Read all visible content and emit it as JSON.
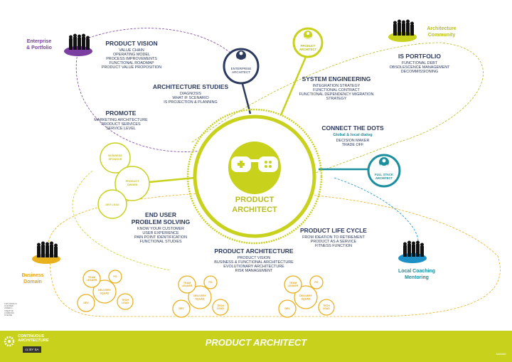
{
  "center": {
    "title_line1": "PRODUCT",
    "title_line2": "ARCHITECT"
  },
  "footer": {
    "title": "PRODUCT ARCHITECT",
    "brand_line1": "CONTINUOUS",
    "brand_line2": "ARCHITECTURE",
    "license": "cc BY SA",
    "logo": "NAWAK"
  },
  "roles": {
    "enterprise_architect": "ENTERPRISE\nARCHITECT",
    "product_architect": "PRODUCT\nARCHITECT",
    "full_stack_architect": "FULL STACK\nARCHITECT",
    "product_owner": "PRODUCT\nOWNER",
    "business_sponsor": "BUSINESS\nSPONSOR",
    "dev_lead": "DEV LEAD"
  },
  "communities": {
    "enterprise_portfolio": "Enterprise\n& Portfolio",
    "architecture_community": "Architecture\nCommunity",
    "business_domain": "Business\nDomain",
    "local_coaching": "Local Coaching\nMentoring"
  },
  "blocks": {
    "product_vision": {
      "title": "PRODUCT VISION",
      "items": [
        "VALUE CHAIN",
        "OPERATING MODEL",
        "PROCESS IMPROVEMENTS",
        "FUNCTIONAL ROADMAP",
        "PRODUCT VALUE PROPOSITION"
      ]
    },
    "architecture_studies": {
      "title": "ARCHITECTURE STUDIES",
      "items": [
        "DIAGNOSIS",
        "WHAT IF SCENARIO",
        "IS PROJECTION & PLANNING"
      ]
    },
    "promote": {
      "title": "PROMOTE",
      "items": [
        "MARKETING ARCHITECTURE",
        "PRODUCT  SERVICES",
        "SERVICE LEVEL"
      ]
    },
    "system_engineering": {
      "title": "SYSTEM ENGINEERING",
      "items": [
        "INTEGRATION STRATEGY",
        "FUNCTIONAL CONTRACT",
        "FUNCTIONAL DEPENDENCY MIGRATION",
        "STRATEGY"
      ]
    },
    "is_portfolio": {
      "title": "IS PORTFOLIO",
      "items": [
        "FUNCTIONAL DEBT",
        "OBSOLESCENCE MANAGEMENT",
        "DECOMMISSIONING"
      ]
    },
    "connect_the_dots": {
      "title": "CONNECT THE DOTS",
      "highlight": "Global & local dialog",
      "items": [
        "DECISION MAKER",
        "TRADE OFF"
      ]
    },
    "end_user": {
      "title_line1": "END USER",
      "title_line2": "PROBLEM SOLVING",
      "items": [
        "KNOW YOUR CUSTOMER",
        "USER EXPERIENCE",
        "PAIN POINT IDENTIFICATION",
        "FUNCTIONAL STUDIES"
      ]
    },
    "product_life_cycle": {
      "title": "PRODUCT LIFE CYCLE",
      "items": [
        "FROM IDEATION TO RETIREMENT",
        "PRODUCT AS A SERVICE",
        "FITNESS FUNCTION"
      ]
    },
    "product_architecture": {
      "title": "PRODUCT ARCHITECTURE",
      "items": [
        "PRODUCT VISION",
        "BUSINESS & FUNCTIONAL ARCHITECTURE",
        "EVOLUTIONARY ARCHITECTURE",
        "RISK MANAGEMENT"
      ]
    }
  },
  "squads": {
    "center": "DELIVERY\nSQUAD",
    "team_leader": "TEAM\nLEADER",
    "po": "PO",
    "dev": "DEV",
    "tech_lead": "TECH\nLEAD"
  },
  "note": "THIS WORK IS LICENSED UNDER A CREATIVE COMMONS LICENSE",
  "colors": {
    "olive": "#c8d11b",
    "navy": "#2c3a5e",
    "purple": "#7a3fa0",
    "teal": "#1b8f9d",
    "orange": "#e9b11e",
    "blue": "#1d8fc4"
  }
}
